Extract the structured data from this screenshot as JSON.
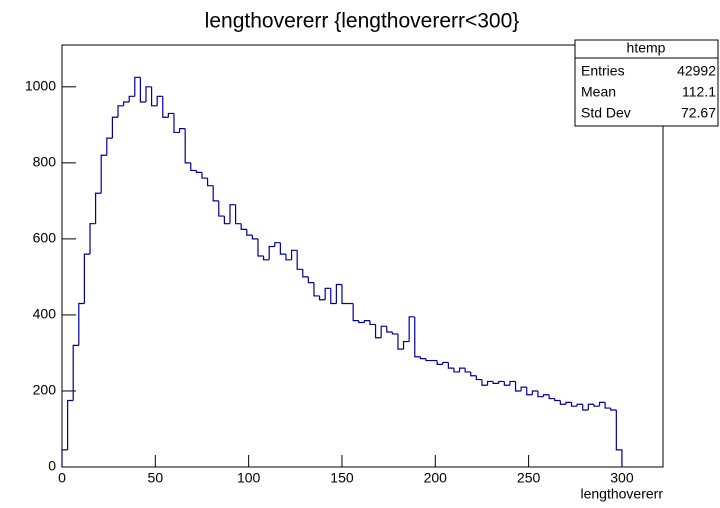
{
  "chart_data": {
    "type": "histogram",
    "title": "lengthovererr {lengthovererr<300}",
    "x_label": "lengthovererr",
    "bins": [
      0,
      3,
      6,
      9,
      12,
      15,
      18,
      21,
      24,
      27,
      30,
      33,
      36,
      39,
      42,
      45,
      48,
      51,
      54,
      57,
      60,
      63,
      66,
      69,
      72,
      75,
      78,
      81,
      84,
      87,
      90,
      93,
      96,
      99,
      102,
      105,
      108,
      111,
      114,
      117,
      120,
      123,
      126,
      129,
      132,
      135,
      138,
      141,
      144,
      147,
      150,
      153,
      156,
      159,
      162,
      165,
      168,
      171,
      174,
      177,
      180,
      183,
      186,
      189,
      192,
      195,
      198,
      201,
      204,
      207,
      210,
      213,
      216,
      219,
      222,
      225,
      228,
      231,
      234,
      237,
      240,
      243,
      246,
      249,
      252,
      255,
      258,
      261,
      264,
      267,
      270,
      273,
      276,
      279,
      282,
      285,
      288,
      291,
      294,
      297,
      300
    ],
    "values": [
      45,
      175,
      320,
      430,
      560,
      640,
      720,
      820,
      865,
      920,
      950,
      960,
      975,
      1025,
      960,
      1000,
      950,
      975,
      920,
      930,
      880,
      890,
      800,
      780,
      775,
      760,
      740,
      700,
      660,
      640,
      690,
      640,
      625,
      610,
      600,
      555,
      545,
      580,
      590,
      560,
      545,
      570,
      520,
      500,
      485,
      450,
      440,
      470,
      430,
      480,
      430,
      430,
      385,
      380,
      385,
      375,
      340,
      370,
      355,
      350,
      310,
      330,
      395,
      290,
      285,
      280,
      280,
      270,
      275,
      260,
      250,
      260,
      250,
      240,
      230,
      215,
      225,
      220,
      225,
      215,
      225,
      200,
      210,
      190,
      200,
      185,
      190,
      180,
      175,
      165,
      170,
      160,
      165,
      150,
      165,
      160,
      170,
      155,
      150,
      45
    ],
    "color": "#000099",
    "xlim": [
      0,
      322
    ],
    "xticks": [
      0,
      50,
      100,
      150,
      200,
      250,
      300
    ],
    "ylim": [
      0,
      1110
    ],
    "yticks": [
      0,
      200,
      400,
      600,
      800,
      1000
    ],
    "stats": {
      "name": "htemp",
      "rows": [
        [
          "Entries",
          "42992"
        ],
        [
          "Mean",
          "112.1"
        ],
        [
          "Std Dev",
          "72.67"
        ]
      ]
    }
  }
}
